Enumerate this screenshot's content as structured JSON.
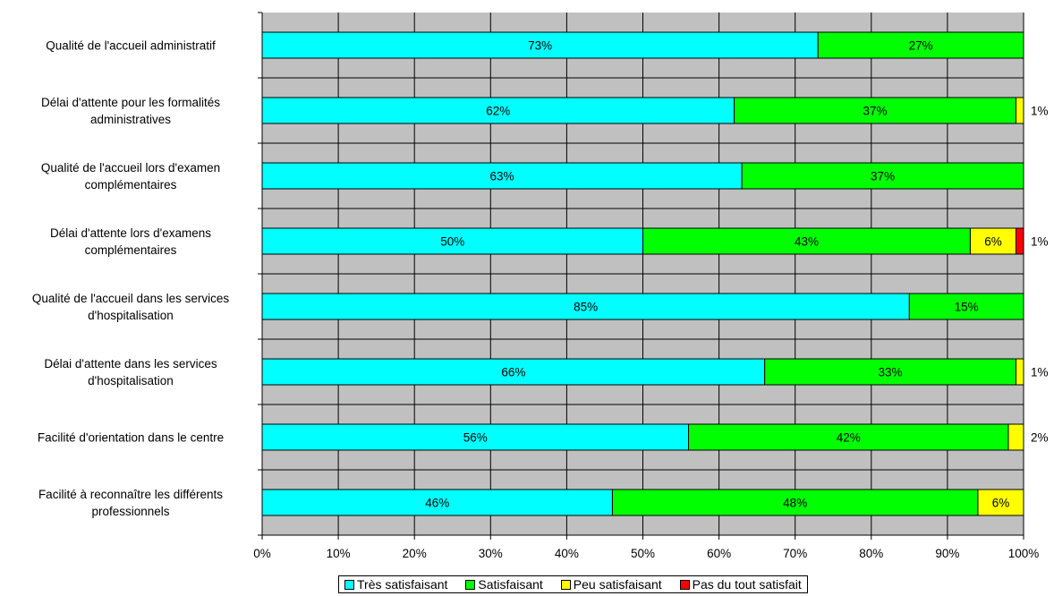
{
  "chart_data": {
    "type": "bar",
    "orientation": "horizontal",
    "stacked": true,
    "categories": [
      [
        "Qualité de l'accueil administratif"
      ],
      [
        "Délai d'attente pour les formalités",
        "administratives"
      ],
      [
        "Qualité de l'accueil lors d'examen",
        "complémentaires"
      ],
      [
        "Délai d'attente lors d'examens",
        "complémentaires"
      ],
      [
        "Qualité de l'accueil dans les services",
        "d'hospitalisation"
      ],
      [
        "Délai d'attente dans les services",
        "d'hospitalisation"
      ],
      [
        "Facilité d'orientation dans le centre"
      ],
      [
        "Facilité à reconnaître les différents",
        "professionnels"
      ]
    ],
    "series": [
      {
        "name": "Très satisfaisant",
        "color": "#00FFFF",
        "values": [
          73,
          62,
          63,
          50,
          85,
          66,
          56,
          46
        ],
        "labels": [
          "73%",
          "62%",
          "63%",
          "50%",
          "85%",
          "66%",
          "56%",
          "46%"
        ]
      },
      {
        "name": "Satisfaisant",
        "color": "#00FF00",
        "values": [
          27,
          37,
          37,
          43,
          15,
          33,
          42,
          48
        ],
        "labels": [
          "27%",
          "37%",
          "37%",
          "43%",
          "15%",
          "33%",
          "42%",
          "48%"
        ]
      },
      {
        "name": "Peu satisfaisant",
        "color": "#FFFF00",
        "values": [
          0,
          1,
          0,
          6,
          0,
          1,
          2,
          6
        ],
        "labels": [
          "",
          "1%",
          "",
          "6%",
          "",
          "1%",
          "2%",
          "6%"
        ]
      },
      {
        "name": "Pas du tout satisfait",
        "color": "#FF0000",
        "values": [
          0,
          0,
          0,
          1,
          0,
          0,
          0,
          0
        ],
        "labels": [
          "",
          "",
          "",
          "1%",
          "",
          "",
          "",
          ""
        ]
      }
    ],
    "xlim": [
      0,
      100
    ],
    "x_ticks": [
      "0%",
      "10%",
      "20%",
      "30%",
      "40%",
      "50%",
      "60%",
      "70%",
      "80%",
      "90%",
      "100%"
    ],
    "grid": true,
    "plot_background": "#C0C0C0",
    "legend_position": "bottom"
  }
}
